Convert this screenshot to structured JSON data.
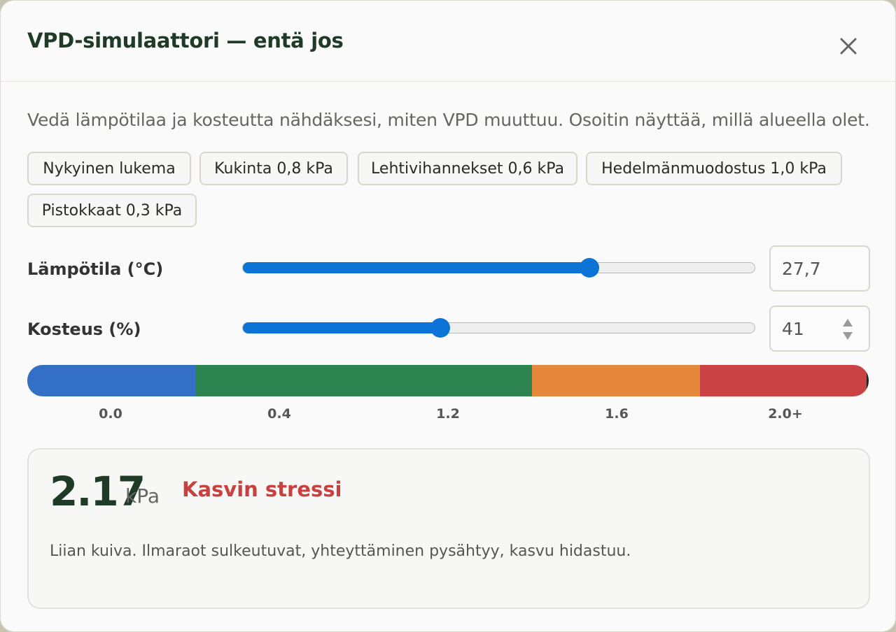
{
  "dialog": {
    "title": "VPD-simulaattori — entä jos",
    "close_icon": "close-icon",
    "intro": "Vedä lämpötilaa ja kosteutta nähdäksesi, miten VPD muuttuu. Osoitin näyttää, millä alueella olet."
  },
  "presets": [
    {
      "label": "Nykyinen lukema"
    },
    {
      "label": "Kukinta 0,8 kPa"
    },
    {
      "label": "Lehtivihannekset 0,6 kPa"
    },
    {
      "label": "Hedelmänmuodostus 1,0 kPa"
    },
    {
      "label": "Pistokkaat 0,3 kPa"
    }
  ],
  "temperature": {
    "label": "Lämpötila (°C)",
    "value": "27,7",
    "slider_fraction": 0.675
  },
  "humidity": {
    "label": "Kosteus (%)",
    "value": "41",
    "slider_fraction": 0.385
  },
  "vpd_scale": {
    "ticks": [
      "0.0",
      "0.4",
      "1.2",
      "1.6",
      "2.0+"
    ],
    "zones": [
      {
        "color": "#3370c5",
        "fraction": 0.2
      },
      {
        "color": "#2e8451",
        "fraction": 0.4
      },
      {
        "color": "#e5883b",
        "fraction": 0.2
      },
      {
        "color": "#cb4244",
        "fraction": 0.2
      }
    ],
    "indicator_color": "#222222"
  },
  "result": {
    "value": "2.17",
    "unit": "kPa",
    "status": "Kasvin stressi",
    "status_color": "#c9413f",
    "description": "Liian kuiva. Ilmaraot sulkeutuvat, yhteyttäminen pysähtyy, kasvu hidastuu."
  }
}
